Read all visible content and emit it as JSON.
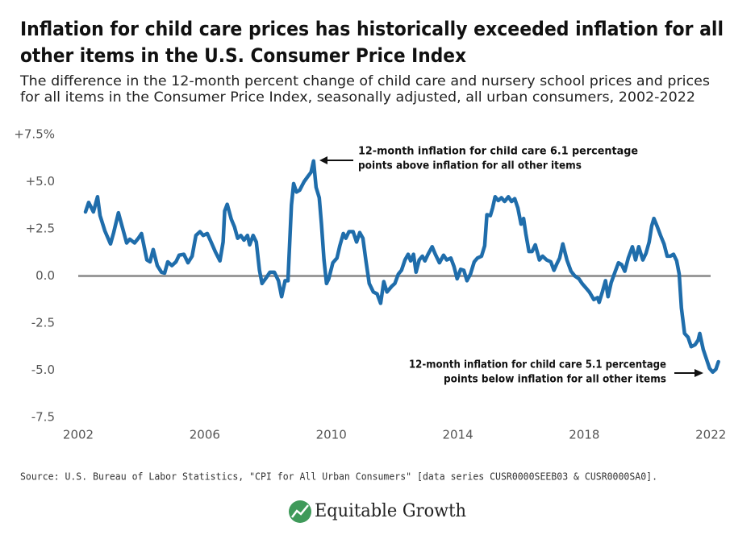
{
  "chart_data": {
    "type": "line",
    "title": [
      "Inflation for child care prices has historically exceeded inflation for all",
      "other items in the U.S. Consumer Price Index"
    ],
    "subtitle": [
      "The difference in the 12-month percent change of child care and nursery school prices and prices",
      "for all items in the Consumer Price Index, seasonally adjusted, all urban consumers, 2002-2022"
    ],
    "annotations": [
      [
        "12-month inflation for child care 6.1 percentage",
        "points above inflation for all other items"
      ],
      [
        "12-month inflation for child care 5.1 percentage",
        "points below inflation for all other items"
      ]
    ],
    "source": "Source: U.S. Bureau of Labor Statistics, \"CPI for All Urban Consumers\" [data series CUSR0000SEEB03 & CUSR0000SA0].",
    "logo": "Equitable Growth",
    "color": "#1f6dab",
    "xlim": [
      2002,
      2022.3
    ],
    "xticks": [
      2002,
      2006,
      2010,
      2014,
      2018,
      2022
    ],
    "ylim": [
      -7.5,
      7.5
    ],
    "yticks": [
      {
        "value": 7.5,
        "label": "+7.5%"
      },
      {
        "value": 5,
        "label": "+5.0"
      },
      {
        "value": 2.5,
        "label": "+2.5"
      },
      {
        "value": 0,
        "label": "0.0"
      },
      {
        "value": -2.5,
        "label": "-2.5"
      },
      {
        "value": -5,
        "label": "-5.0"
      },
      {
        "value": -7.5,
        "label": "-7.5"
      }
    ],
    "x": [
      2002.23,
      2002.33,
      2002.48,
      2002.61,
      2002.69,
      2002.84,
      2003.02,
      2003.12,
      2003.27,
      2003.4,
      2003.53,
      2003.63,
      2003.78,
      2003.9,
      2004.0,
      2004.06,
      2004.17,
      2004.27,
      2004.37,
      2004.5,
      2004.63,
      2004.73,
      2004.83,
      2004.96,
      2005.09,
      2005.19,
      2005.34,
      2005.47,
      2005.6,
      2005.72,
      2005.85,
      2005.95,
      2006.08,
      2006.2,
      2006.33,
      2006.48,
      2006.58,
      2006.63,
      2006.71,
      2006.84,
      2006.94,
      2007.04,
      2007.14,
      2007.24,
      2007.35,
      2007.42,
      2007.53,
      2007.63,
      2007.73,
      2007.81,
      2007.94,
      2008.06,
      2008.2,
      2008.33,
      2008.43,
      2008.54,
      2008.63,
      2008.74,
      2008.81,
      2008.9,
      2009.0,
      2009.14,
      2009.27,
      2009.36,
      2009.44,
      2009.52,
      2009.62,
      2009.69,
      2009.77,
      2009.85,
      2009.92,
      2010.05,
      2010.18,
      2010.27,
      2010.38,
      2010.46,
      2010.56,
      2010.69,
      2010.8,
      2010.9,
      2011.0,
      2011.1,
      2011.2,
      2011.33,
      2011.45,
      2011.56,
      2011.66,
      2011.76,
      2011.91,
      2012.01,
      2012.12,
      2012.22,
      2012.33,
      2012.43,
      2012.51,
      2012.6,
      2012.68,
      2012.78,
      2012.88,
      2012.96,
      2013.06,
      2013.19,
      2013.29,
      2013.42,
      2013.55,
      2013.65,
      2013.78,
      2013.88,
      2013.98,
      2014.09,
      2014.19,
      2014.29,
      2014.4,
      2014.52,
      2014.62,
      2014.75,
      2014.85,
      2014.92,
      2015.03,
      2015.1,
      2015.18,
      2015.28,
      2015.38,
      2015.48,
      2015.6,
      2015.7,
      2015.8,
      2015.9,
      2016.0,
      2016.08,
      2016.15,
      2016.25,
      2016.35,
      2016.45,
      2016.58,
      2016.68,
      2016.81,
      2016.94,
      2017.04,
      2017.12,
      2017.22,
      2017.32,
      2017.45,
      2017.58,
      2017.7,
      2017.83,
      2017.93,
      2018.06,
      2018.16,
      2018.3,
      2018.42,
      2018.47,
      2018.57,
      2018.67,
      2018.75,
      2018.85,
      2018.98,
      2019.08,
      2019.18,
      2019.28,
      2019.39,
      2019.52,
      2019.62,
      2019.72,
      2019.85,
      2019.95,
      2020.05,
      2020.13,
      2020.2,
      2020.31,
      2020.41,
      2020.52,
      2020.62,
      2020.72,
      2020.82,
      2020.92,
      2021.0,
      2021.07,
      2021.17,
      2021.28,
      2021.38,
      2021.5,
      2021.6,
      2021.65,
      2021.76,
      2021.86,
      2021.96,
      2022.06,
      2022.16,
      2022.24
    ],
    "values": [
      3.4,
      3.9,
      3.4,
      4.2,
      3.2,
      2.4,
      1.7,
      2.3,
      3.35,
      2.55,
      1.75,
      1.95,
      1.75,
      2.0,
      2.25,
      1.75,
      0.85,
      0.75,
      1.4,
      0.55,
      0.2,
      0.15,
      0.75,
      0.55,
      0.75,
      1.1,
      1.15,
      0.7,
      1.05,
      2.15,
      2.35,
      2.15,
      2.25,
      1.8,
      1.3,
      0.8,
      1.8,
      3.45,
      3.8,
      3.0,
      2.6,
      2.0,
      2.15,
      1.9,
      2.15,
      1.65,
      2.15,
      1.8,
      0.3,
      -0.4,
      -0.1,
      0.2,
      0.2,
      -0.25,
      -1.1,
      -0.25,
      -0.25,
      3.75,
      4.9,
      4.45,
      4.55,
      5.0,
      5.3,
      5.5,
      6.1,
      4.7,
      4.15,
      2.75,
      0.85,
      -0.4,
      -0.15,
      0.7,
      0.95,
      1.6,
      2.25,
      2.0,
      2.35,
      2.35,
      1.8,
      2.3,
      2.0,
      0.75,
      -0.4,
      -0.85,
      -0.95,
      -1.45,
      -0.3,
      -0.85,
      -0.55,
      -0.4,
      0.1,
      0.3,
      0.85,
      1.15,
      0.8,
      1.15,
      0.2,
      0.85,
      1.05,
      0.8,
      1.15,
      1.55,
      1.15,
      0.7,
      1.1,
      0.85,
      0.95,
      0.5,
      -0.15,
      0.35,
      0.3,
      -0.25,
      0.1,
      0.75,
      0.95,
      1.05,
      1.6,
      3.25,
      3.2,
      3.6,
      4.2,
      4.0,
      4.15,
      3.95,
      4.2,
      3.95,
      4.1,
      3.6,
      2.75,
      3.05,
      2.25,
      1.3,
      1.3,
      1.65,
      0.85,
      1.05,
      0.85,
      0.75,
      0.3,
      0.6,
      0.95,
      1.7,
      0.85,
      0.25,
      0,
      -0.15,
      -0.4,
      -0.65,
      -0.85,
      -1.25,
      -1.15,
      -1.4,
      -0.85,
      -0.25,
      -1.1,
      -0.35,
      0.25,
      0.7,
      0.6,
      0.25,
      0.95,
      1.55,
      0.85,
      1.55,
      0.85,
      1.2,
      1.8,
      2.65,
      3.05,
      2.6,
      2.15,
      1.7,
      1.05,
      1.05,
      1.15,
      0.8,
      0.1,
      -1.7,
      -3.05,
      -3.25,
      -3.75,
      -3.65,
      -3.4,
      -3.05,
      -3.9,
      -4.4,
      -4.9,
      -5.1,
      -4.95,
      -4.55
    ]
  }
}
